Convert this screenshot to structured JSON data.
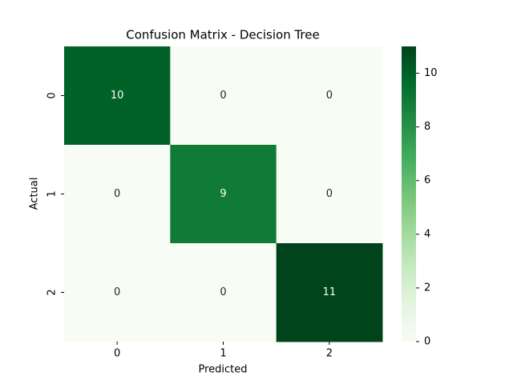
{
  "chart_data": {
    "type": "heatmap",
    "title": "Confusion Matrix - Decision Tree",
    "x_label": "Predicted",
    "y_label": "Actual",
    "x_categories": [
      "0",
      "1",
      "2"
    ],
    "y_categories": [
      "0",
      "1",
      "2"
    ],
    "values": [
      [
        10,
        0,
        0
      ],
      [
        0,
        9,
        0
      ],
      [
        0,
        0,
        11
      ]
    ],
    "colorscale": [
      "#f7fcf5",
      "#e5f5e0",
      "#c7e9c0",
      "#a1d99b",
      "#74c476",
      "#41ab5d",
      "#238b45",
      "#006d2c",
      "#00441b"
    ],
    "clim": [
      0,
      11
    ],
    "cticks": [
      0,
      2,
      4,
      6,
      8,
      10
    ]
  }
}
